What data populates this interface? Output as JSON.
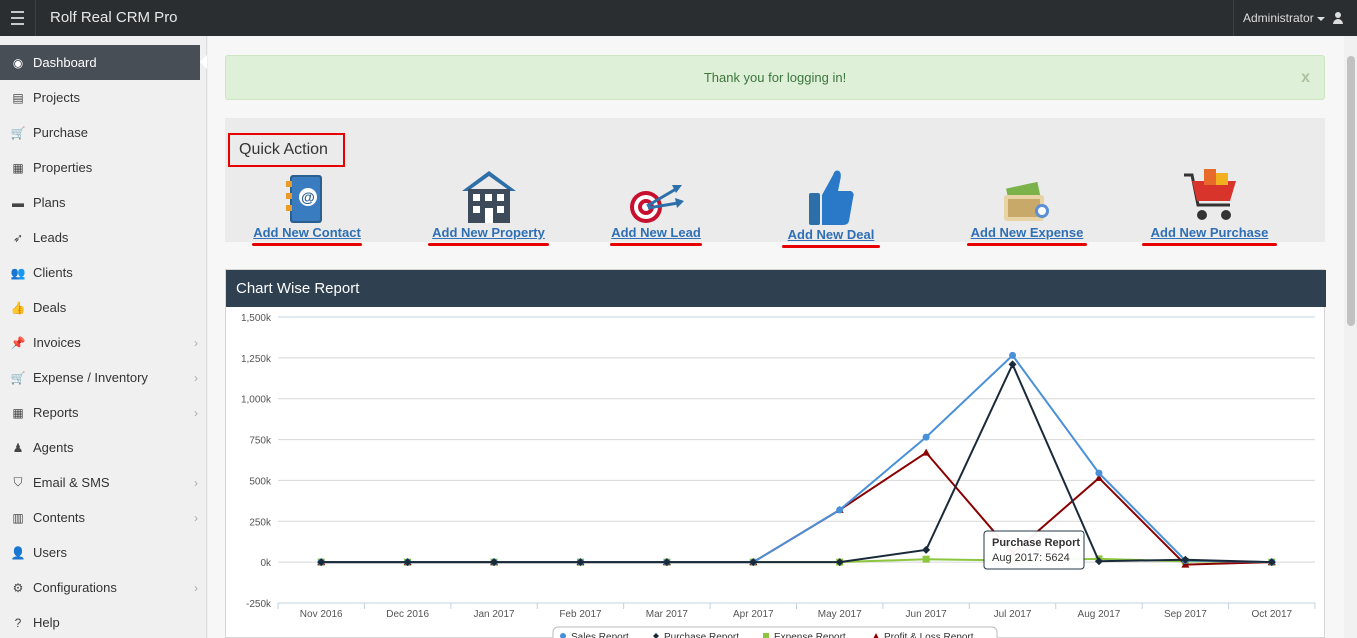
{
  "topbar": {
    "title": "Rolf Real CRM Pro",
    "user": "Administrator"
  },
  "sidebar": {
    "items": [
      {
        "label": "Dashboard",
        "icon": "dashboard-icon",
        "active": true,
        "submenu": false
      },
      {
        "label": "Projects",
        "icon": "list-icon",
        "submenu": false
      },
      {
        "label": "Purchase",
        "icon": "cart-icon",
        "submenu": false
      },
      {
        "label": "Properties",
        "icon": "building-icon",
        "submenu": false
      },
      {
        "label": "Plans",
        "icon": "briefcase-icon",
        "submenu": false
      },
      {
        "label": "Leads",
        "icon": "rocket-icon",
        "submenu": false
      },
      {
        "label": "Clients",
        "icon": "users-icon",
        "submenu": false
      },
      {
        "label": "Deals",
        "icon": "thumbs-up-icon",
        "submenu": false
      },
      {
        "label": "Invoices",
        "icon": "pin-icon",
        "submenu": true
      },
      {
        "label": "Expense / Inventory",
        "icon": "cart-icon",
        "submenu": true
      },
      {
        "label": "Reports",
        "icon": "table-icon",
        "submenu": true
      },
      {
        "label": "Agents",
        "icon": "agent-icon",
        "submenu": false
      },
      {
        "label": "Email & SMS",
        "icon": "shield-icon",
        "submenu": true
      },
      {
        "label": "Contents",
        "icon": "newspaper-icon",
        "submenu": true
      },
      {
        "label": "Users",
        "icon": "user-icon",
        "submenu": false
      },
      {
        "label": "Configurations",
        "icon": "cogs-icon",
        "submenu": true
      },
      {
        "label": "Help",
        "icon": "help-icon",
        "submenu": false
      }
    ]
  },
  "alert": {
    "message": "Thank you for logging in!",
    "close": "x"
  },
  "quick_action": {
    "title": "Quick Action",
    "items": [
      {
        "label": "Add New Contact",
        "icon": "address-book-icon"
      },
      {
        "label": "Add New Property",
        "icon": "house-icon"
      },
      {
        "label": "Add New Lead",
        "icon": "target-icon"
      },
      {
        "label": "Add New Deal",
        "icon": "thumbs-up-icon"
      },
      {
        "label": "Add New Expense",
        "icon": "money-icon"
      },
      {
        "label": "Add New Purchase",
        "icon": "shopping-cart-icon"
      }
    ]
  },
  "chart_panel": {
    "title": "Chart Wise Report"
  },
  "chart_data": {
    "type": "line",
    "categories": [
      "Nov 2016",
      "Dec 2016",
      "Jan 2017",
      "Feb 2017",
      "Mar 2017",
      "Apr 2017",
      "May 2017",
      "Jun 2017",
      "Jul 2017",
      "Aug 2017",
      "Sep 2017",
      "Oct 2017"
    ],
    "ylim": [
      -250000,
      1500000
    ],
    "yticks": [
      -250000,
      0,
      250000,
      500000,
      750000,
      1000000,
      1250000,
      1500000
    ],
    "ytick_labels": [
      "-250k",
      "0k",
      "250k",
      "500k",
      "750k",
      "1,000k",
      "1,250k",
      "1,500k"
    ],
    "series": [
      {
        "name": "Sales Report",
        "color": "#4a90d9",
        "marker": "circle",
        "values": [
          0,
          0,
          0,
          0,
          0,
          0,
          320000,
          765000,
          1265000,
          545000,
          10000,
          0
        ]
      },
      {
        "name": "Purchase Report",
        "color": "#1b2a3a",
        "marker": "diamond",
        "values": [
          0,
          0,
          0,
          0,
          0,
          0,
          0,
          75000,
          1210000,
          5624,
          15000,
          0
        ]
      },
      {
        "name": "Expense Report",
        "color": "#8cc63f",
        "marker": "square",
        "values": [
          0,
          0,
          0,
          0,
          0,
          0,
          0,
          18000,
          10000,
          20000,
          5000,
          0
        ]
      },
      {
        "name": "Profit & Loss Report",
        "color": "#8b0000",
        "marker": "triangle",
        "values": [
          0,
          0,
          0,
          0,
          0,
          0,
          320000,
          670000,
          55000,
          515000,
          -15000,
          0
        ]
      }
    ],
    "tooltip": {
      "title": "Purchase Report",
      "text": "Aug 2017: 5624"
    },
    "legend": "bottom",
    "grid": true
  }
}
